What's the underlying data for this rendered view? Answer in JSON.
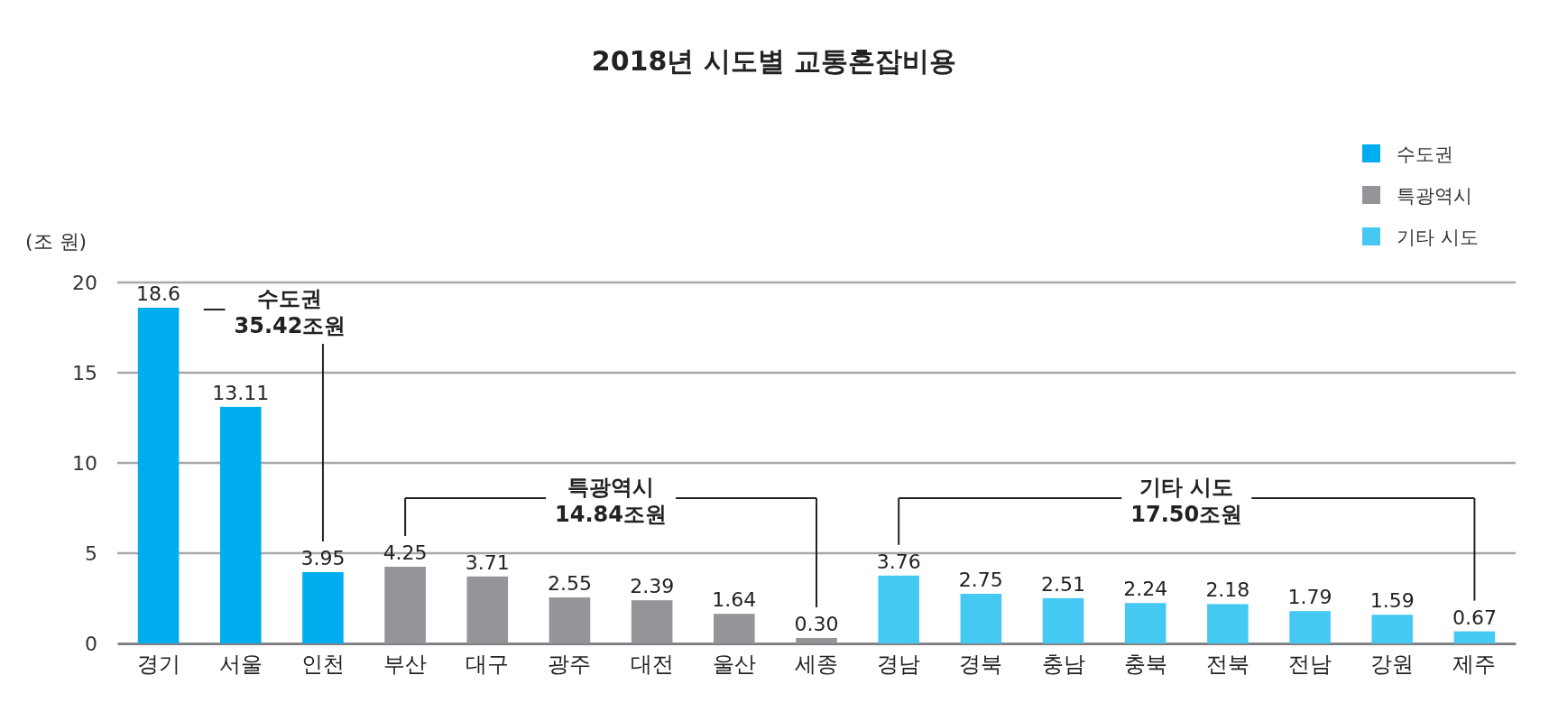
{
  "chart_data": {
    "type": "bar",
    "title": "2018년 시도별 교통혼잡비용",
    "ylabel": "(조 원)",
    "categories": [
      "경기",
      "서울",
      "인천",
      "부산",
      "대구",
      "광주",
      "대전",
      "울산",
      "세종",
      "경남",
      "경북",
      "충남",
      "충북",
      "전북",
      "전남",
      "강원",
      "제주"
    ],
    "stacked": true,
    "series": [
      {
        "name": "수도권",
        "color": "#00aeef",
        "values": [
          18.6,
          13.11,
          3.95,
          null,
          null,
          null,
          null,
          null,
          null,
          null,
          null,
          null,
          null,
          null,
          null,
          null,
          null
        ]
      },
      {
        "name": "특광역시",
        "color": "#939598",
        "values": [
          null,
          null,
          null,
          4.25,
          3.71,
          2.55,
          2.39,
          1.64,
          0.3,
          null,
          null,
          null,
          null,
          null,
          null,
          null,
          null
        ]
      },
      {
        "name": "기타 시도",
        "color": "#45c9f2",
        "values": [
          null,
          null,
          null,
          null,
          null,
          null,
          null,
          null,
          null,
          3.76,
          2.75,
          2.51,
          2.24,
          2.18,
          1.79,
          1.59,
          0.67
        ]
      }
    ],
    "value_labels": [
      "18.6",
      "13.11",
      "3.95",
      "4.25",
      "3.71",
      "2.55",
      "2.39",
      "1.64",
      "0.30",
      "3.76",
      "2.75",
      "2.51",
      "2.24",
      "2.18",
      "1.79",
      "1.59",
      "0.67"
    ],
    "annotations": [
      "수도권\n35.42조원",
      "특광역시\n14.84조원",
      "기타 시도\n17.50조원"
    ],
    "ylim": [
      0,
      20
    ],
    "yticks": [
      0,
      5,
      10,
      15,
      20
    ],
    "grid": "y",
    "legend": "top right"
  }
}
